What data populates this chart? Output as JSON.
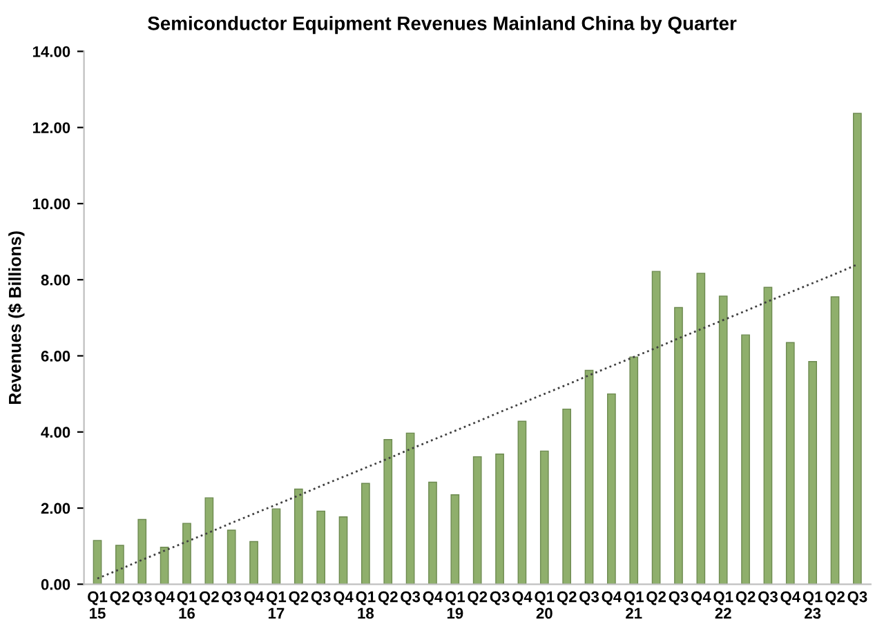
{
  "chart_data": {
    "type": "bar",
    "title": "Semiconductor Equipment Revenues Mainland China by Quarter",
    "ylabel": "Revenues ($ Billions)",
    "categories": [
      "Q1\n15",
      "Q2",
      "Q3",
      "Q4",
      "Q1\n16",
      "Q2",
      "Q3",
      "Q4",
      "Q1\n17",
      "Q2",
      "Q3",
      "Q4",
      "Q1\n18",
      "Q2",
      "Q3",
      "Q4",
      "Q1\n19",
      "Q2",
      "Q3",
      "Q4",
      "Q1\n20",
      "Q2",
      "Q3",
      "Q4",
      "Q1\n21",
      "Q2",
      "Q3",
      "Q4",
      "Q1\n22",
      "Q2",
      "Q3",
      "Q4",
      "Q1\n23",
      "Q2",
      "Q3"
    ],
    "series": [
      {
        "color": "#8faf6c",
        "values": [
          1.15,
          1.02,
          1.7,
          0.97,
          1.6,
          2.27,
          1.42,
          1.12,
          1.98,
          2.5,
          1.92,
          1.77,
          2.65,
          3.8,
          3.97,
          2.68,
          2.35,
          3.35,
          3.42,
          4.28,
          3.5,
          4.6,
          5.62,
          5.0,
          5.97,
          8.22,
          7.27,
          8.17,
          7.57,
          6.55,
          7.8,
          6.35,
          5.85,
          7.55,
          12.37
        ]
      },
      {
        "type": "line",
        "color": "#404040",
        "line_style": "dotted",
        "values": [
          0.15,
          0.39,
          0.64,
          0.88,
          1.12,
          1.36,
          1.61,
          1.85,
          2.09,
          2.33,
          2.58,
          2.82,
          3.06,
          3.3,
          3.55,
          3.79,
          4.03,
          4.27,
          4.52,
          4.76,
          5.0,
          5.24,
          5.49,
          5.73,
          5.97,
          6.21,
          6.46,
          6.7,
          6.94,
          7.18,
          7.43,
          7.67,
          7.91,
          8.15,
          8.4
        ]
      }
    ],
    "ylim": [
      0,
      14
    ],
    "yticks": [
      {
        "value": 0,
        "label": "0.00"
      },
      {
        "value": 2,
        "label": "2.00"
      },
      {
        "value": 4,
        "label": "4.00"
      },
      {
        "value": 6,
        "label": "6.00"
      },
      {
        "value": 8,
        "label": "8.00"
      },
      {
        "value": 10,
        "label": "10.00"
      },
      {
        "value": 12,
        "label": "12.00"
      },
      {
        "value": 14,
        "label": "14.00"
      }
    ],
    "grid": false,
    "legend": false
  }
}
